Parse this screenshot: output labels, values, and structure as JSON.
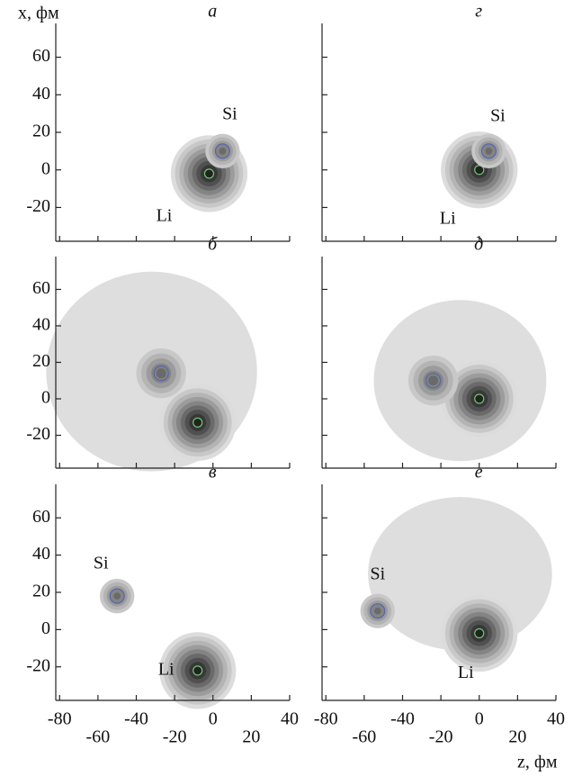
{
  "chart_data": [
    {
      "type": "scatter",
      "title": "а",
      "y_label": "x, фм",
      "xlim": [
        -82,
        40
      ],
      "ylim": [
        -38,
        78
      ],
      "xticks": [
        -80,
        -60,
        -40,
        -20,
        0,
        20,
        40
      ],
      "yticks": [
        -20,
        0,
        20,
        40,
        60
      ],
      "series": [
        {
          "name": "Li",
          "color": "#6fc46f",
          "x": [
            -2
          ],
          "values": [
            -2
          ]
        },
        {
          "name": "Si",
          "color": "#5566b0",
          "x": [
            5
          ],
          "values": [
            10
          ]
        }
      ]
    },
    {
      "type": "scatter",
      "title": "б",
      "xlim": [
        -82,
        40
      ],
      "ylim": [
        -38,
        78
      ],
      "xticks": [
        -80,
        -60,
        -40,
        -20,
        0,
        20,
        40
      ],
      "yticks": [
        -20,
        0,
        20,
        40,
        60
      ],
      "series": [
        {
          "name": "Li",
          "color": "#6fc46f",
          "x": [
            -8
          ],
          "values": [
            -13
          ]
        },
        {
          "name": "Si",
          "color": "#5566b0",
          "x": [
            -27
          ],
          "values": [
            14
          ]
        }
      ]
    },
    {
      "type": "scatter",
      "title": "в",
      "xlim": [
        -82,
        40
      ],
      "ylim": [
        -38,
        78
      ],
      "xticks": [
        -80,
        -60,
        -40,
        -20,
        0,
        20,
        40
      ],
      "yticks": [
        -20,
        0,
        20,
        40,
        60
      ],
      "series": [
        {
          "name": "Li",
          "color": "#6fc46f",
          "x": [
            -8
          ],
          "values": [
            -22
          ]
        },
        {
          "name": "Si",
          "color": "#5566b0",
          "x": [
            -50
          ],
          "values": [
            18
          ]
        }
      ]
    },
    {
      "type": "scatter",
      "title": "г",
      "xlim": [
        -82,
        40
      ],
      "ylim": [
        -38,
        78
      ],
      "xticks": [
        -80,
        -60,
        -40,
        -20,
        0,
        20,
        40
      ],
      "yticks": [
        -20,
        0,
        20,
        40,
        60
      ],
      "series": [
        {
          "name": "Li",
          "color": "#6fc46f",
          "x": [
            0
          ],
          "values": [
            0
          ]
        },
        {
          "name": "Si",
          "color": "#5566b0",
          "x": [
            5
          ],
          "values": [
            10
          ]
        }
      ]
    },
    {
      "type": "scatter",
      "title": "д",
      "xlim": [
        -82,
        40
      ],
      "ylim": [
        -38,
        78
      ],
      "xticks": [
        -80,
        -60,
        -40,
        -20,
        0,
        20,
        40
      ],
      "yticks": [
        -20,
        0,
        20,
        40,
        60
      ],
      "series": [
        {
          "name": "Li",
          "color": "#6fc46f",
          "x": [
            0
          ],
          "values": [
            0
          ]
        },
        {
          "name": "Si",
          "color": "#5566b0",
          "x": [
            -24
          ],
          "values": [
            10
          ]
        }
      ]
    },
    {
      "type": "scatter",
      "title": "е",
      "x_label": "z, фм",
      "xlim": [
        -82,
        40
      ],
      "ylim": [
        -38,
        78
      ],
      "xticks": [
        -80,
        -60,
        -40,
        -20,
        0,
        20,
        40
      ],
      "yticks": [
        -20,
        0,
        20,
        40,
        60
      ],
      "series": [
        {
          "name": "Li",
          "color": "#6fc46f",
          "x": [
            0
          ],
          "values": [
            -2
          ]
        },
        {
          "name": "Si",
          "color": "#5566b0",
          "x": [
            -53
          ],
          "values": [
            10
          ]
        }
      ]
    }
  ]
}
